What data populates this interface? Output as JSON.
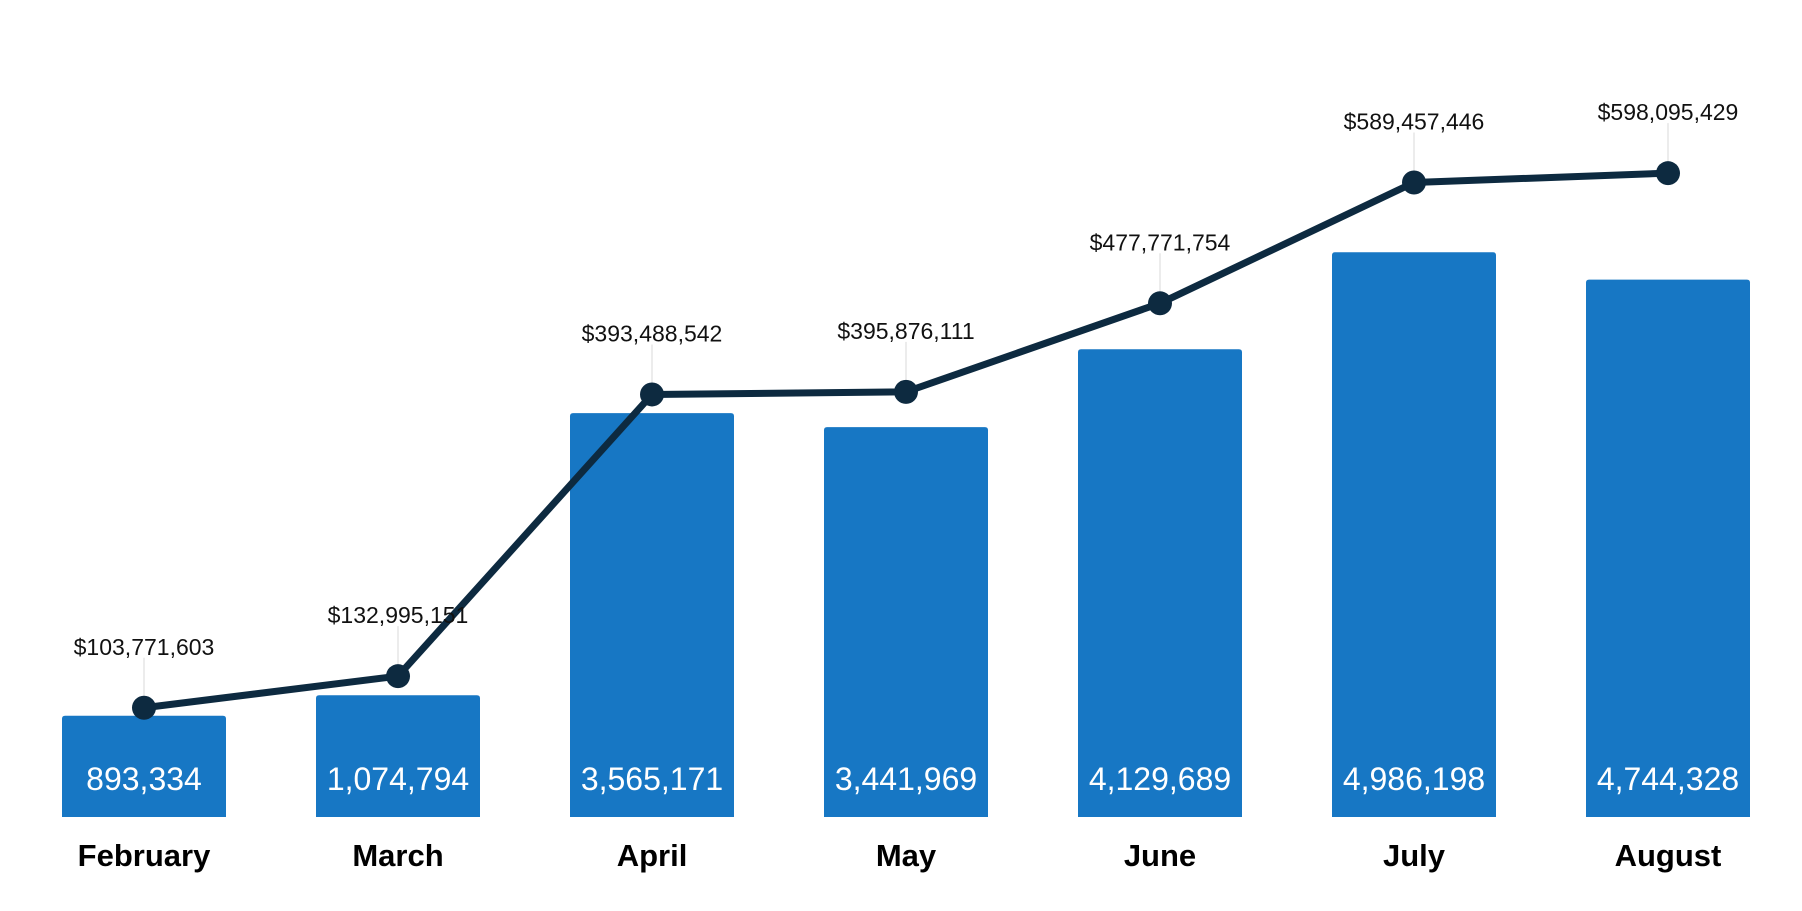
{
  "chart_data": {
    "type": "bar",
    "categories": [
      "February",
      "March",
      "April",
      "May",
      "June",
      "July",
      "August"
    ],
    "series": [
      {
        "type": "bar",
        "values": [
          893334,
          1074794,
          3565171,
          3441969,
          4129689,
          4986198,
          4744328
        ],
        "value_labels": [
          "893,334",
          "1,074,794",
          "3,565,171",
          "3,441,969",
          "4,129,689",
          "4,986,198",
          "4,744,328"
        ],
        "color": "#1777c4"
      },
      {
        "type": "line",
        "values": [
          103771603,
          132995151,
          393488542,
          395876111,
          477771754,
          589457446,
          598095429
        ],
        "value_labels": [
          "$103,771,603",
          "$132,995,151",
          "$393,488,542",
          "$395,876,111",
          "$477,771,754",
          "$589,457,446",
          "$598,095,429"
        ],
        "color": "#0d2a40"
      }
    ],
    "title": "",
    "xlabel": "",
    "ylabel": "",
    "grid": false,
    "legend": "none"
  }
}
